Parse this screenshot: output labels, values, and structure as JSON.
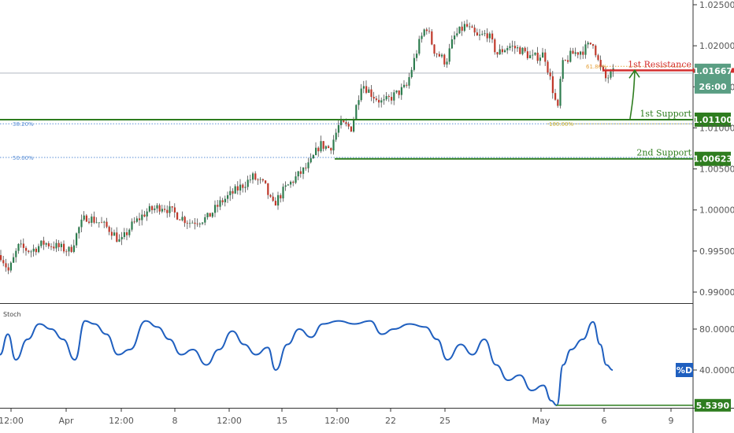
{
  "chart_data": [
    {
      "type": "candlestick",
      "title": "",
      "price_axis": {
        "ticks": [
          "1.02500",
          "1.02000",
          "1.01500",
          "1.01000",
          "1.00500",
          "1.00000",
          "0.99500",
          "0.99000"
        ],
        "ylim": [
          0.9875,
          1.0265
        ]
      },
      "time_axis": {
        "ticks": [
          "12:00",
          "Apr",
          "12:00",
          "8",
          "12:00",
          "15",
          "12:00",
          "22",
          "25",
          "May",
          "6",
          "9"
        ]
      },
      "current_price": "1.01667",
      "countdown": "26:00",
      "levels": [
        {
          "name": "1st Resistance",
          "value": 1.017,
          "badge": "",
          "color": "#d32f2f"
        },
        {
          "name": "1st Support",
          "value": 1.011,
          "badge": "1.01100",
          "color": "#2e7d1f"
        },
        {
          "name": "2nd Support",
          "value": 1.00623,
          "badge": "1.00623",
          "color": "#2e7d1f"
        }
      ],
      "fibonacci": [
        {
          "label": "38.20%",
          "value": 1.0105,
          "color": "#5b8fd6"
        },
        {
          "label": "50.00%",
          "value": 1.0064,
          "color": "#5b8fd6"
        },
        {
          "label": "61.80%",
          "value": 1.0175,
          "color": "#e6a23c"
        },
        {
          "label": "100.00%",
          "value": 1.0105,
          "color": "#c9b23a"
        }
      ],
      "path": [
        [
          0,
          0.9945
        ],
        [
          10,
          0.9925
        ],
        [
          22,
          0.9955
        ],
        [
          38,
          0.995
        ],
        [
          55,
          0.996
        ],
        [
          72,
          0.9955
        ],
        [
          88,
          0.995
        ],
        [
          100,
          0.998
        ],
        [
          108,
          0.9992
        ],
        [
          125,
          0.9985
        ],
        [
          140,
          0.9975
        ],
        [
          152,
          0.996
        ],
        [
          165,
          0.998
        ],
        [
          185,
          0.9998
        ],
        [
          205,
          1.0005
        ],
        [
          222,
          0.9995
        ],
        [
          240,
          0.9985
        ],
        [
          262,
          0.999
        ],
        [
          280,
          1.001
        ],
        [
          300,
          1.0025
        ],
        [
          320,
          1.004
        ],
        [
          335,
          1.003
        ],
        [
          345,
          1.0005
        ],
        [
          360,
          1.0025
        ],
        [
          375,
          1.004
        ],
        [
          392,
          1.0055
        ],
        [
          405,
          1.008
        ],
        [
          418,
          1.0075
        ],
        [
          430,
          1.0105
        ],
        [
          445,
          1.01
        ],
        [
          458,
          1.0155
        ],
        [
          472,
          1.014
        ],
        [
          485,
          1.013
        ],
        [
          500,
          1.014
        ],
        [
          515,
          1.015
        ],
        [
          530,
          1.02
        ],
        [
          540,
          1.0225
        ],
        [
          550,
          1.0195
        ],
        [
          565,
          1.018
        ],
        [
          575,
          1.021
        ],
        [
          590,
          1.0225
        ],
        [
          605,
          1.021
        ],
        [
          618,
          1.0215
        ],
        [
          630,
          1.019
        ],
        [
          645,
          1.02
        ],
        [
          660,
          1.0195
        ],
        [
          675,
          1.0185
        ],
        [
          690,
          1.019
        ],
        [
          700,
          1.015
        ],
        [
          707,
          1.012
        ],
        [
          712,
          1.0175
        ],
        [
          725,
          1.019
        ],
        [
          740,
          1.0195
        ],
        [
          752,
          1.0205
        ],
        [
          760,
          1.0175
        ],
        [
          768,
          1.016
        ],
        [
          778,
          1.0167
        ]
      ]
    },
    {
      "type": "line",
      "title": "Stoch",
      "series_label": "%D",
      "y_ticks": [
        "80.0000",
        "40.0000"
      ],
      "ylim": [
        -5,
        100
      ],
      "last_value": 40,
      "support_level": {
        "value": 5.539,
        "label": "5.5390"
      },
      "points": [
        [
          0,
          55
        ],
        [
          10,
          75
        ],
        [
          20,
          50
        ],
        [
          35,
          70
        ],
        [
          50,
          85
        ],
        [
          65,
          80
        ],
        [
          80,
          70
        ],
        [
          95,
          50
        ],
        [
          108,
          88
        ],
        [
          120,
          85
        ],
        [
          135,
          75
        ],
        [
          150,
          55
        ],
        [
          165,
          60
        ],
        [
          185,
          88
        ],
        [
          200,
          82
        ],
        [
          215,
          70
        ],
        [
          230,
          55
        ],
        [
          245,
          60
        ],
        [
          262,
          45
        ],
        [
          278,
          60
        ],
        [
          295,
          78
        ],
        [
          310,
          65
        ],
        [
          325,
          55
        ],
        [
          340,
          62
        ],
        [
          350,
          40
        ],
        [
          365,
          65
        ],
        [
          380,
          80
        ],
        [
          395,
          72
        ],
        [
          410,
          85
        ],
        [
          430,
          88
        ],
        [
          450,
          85
        ],
        [
          470,
          88
        ],
        [
          485,
          75
        ],
        [
          500,
          80
        ],
        [
          520,
          85
        ],
        [
          540,
          82
        ],
        [
          555,
          70
        ],
        [
          568,
          50
        ],
        [
          585,
          65
        ],
        [
          600,
          55
        ],
        [
          615,
          70
        ],
        [
          630,
          45
        ],
        [
          645,
          30
        ],
        [
          660,
          35
        ],
        [
          675,
          20
        ],
        [
          690,
          25
        ],
        [
          700,
          10
        ],
        [
          707,
          5.5
        ],
        [
          715,
          45
        ],
        [
          725,
          60
        ],
        [
          740,
          70
        ],
        [
          753,
          87
        ],
        [
          762,
          65
        ],
        [
          770,
          45
        ],
        [
          778,
          40
        ]
      ]
    }
  ]
}
